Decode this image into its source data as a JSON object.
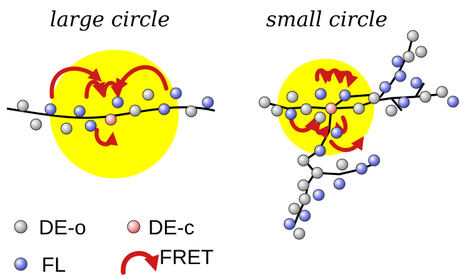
{
  "panels": {
    "left": {
      "title": "large circle"
    },
    "right": {
      "title": "small circle"
    }
  },
  "legend": {
    "de_o": "DE-o",
    "de_c": "DE-c",
    "fl": "FL",
    "fret": "FRET"
  },
  "colors": {
    "circle_fill": "#ffff00",
    "de_o": "#bdbdbd",
    "de_c": "#f2a0a0",
    "fl": "#8a8ff0",
    "fret_arrow": "#cc1a1a",
    "chain": "#000000"
  }
}
